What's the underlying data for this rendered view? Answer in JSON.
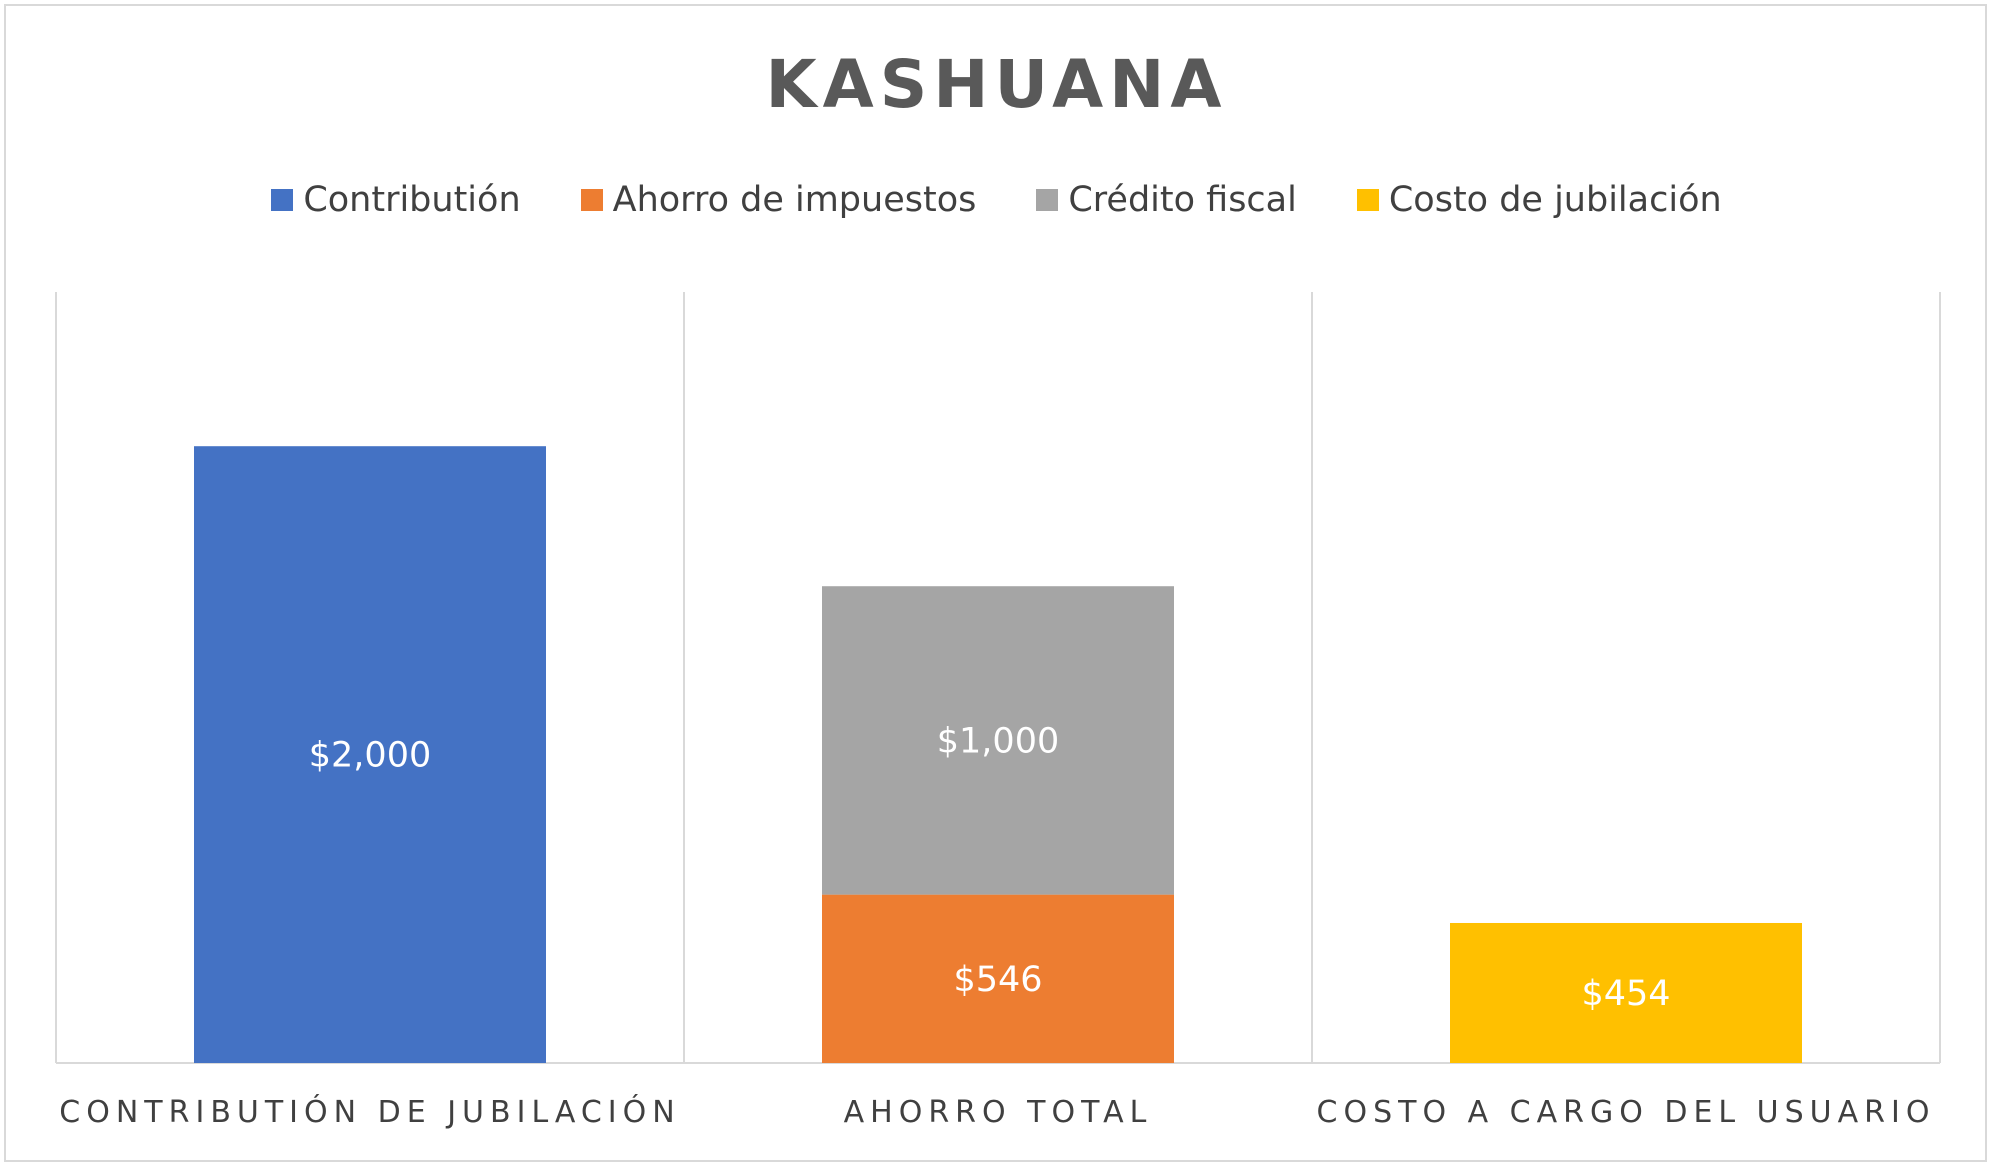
{
  "chart_data": {
    "type": "bar",
    "stacked": true,
    "title": "KASHUANA",
    "categories": [
      "CONTRIBUTIÓN DE JUBILACIÓN",
      "AHORRO TOTAL",
      "COSTO A CARGO DEL USUARIO"
    ],
    "series": [
      {
        "name": "Contributión",
        "color": "#4472C4",
        "values": [
          2000,
          0,
          0
        ],
        "labels": [
          "$2,000",
          "",
          ""
        ]
      },
      {
        "name": "Ahorro de impuestos",
        "color": "#ED7D31",
        "values": [
          0,
          546,
          0
        ],
        "labels": [
          "",
          "$546",
          ""
        ]
      },
      {
        "name": "Crédito fiscal",
        "color": "#A5A5A5",
        "values": [
          0,
          1000,
          0
        ],
        "labels": [
          "",
          "$1,000",
          ""
        ]
      },
      {
        "name": "Costo de jubilación",
        "color": "#FFC000",
        "values": [
          0,
          0,
          454
        ],
        "labels": [
          "",
          "",
          "$454"
        ]
      }
    ],
    "ylim": [
      0,
      2500
    ],
    "legend_position": "top",
    "grid": "vertical category separators"
  }
}
